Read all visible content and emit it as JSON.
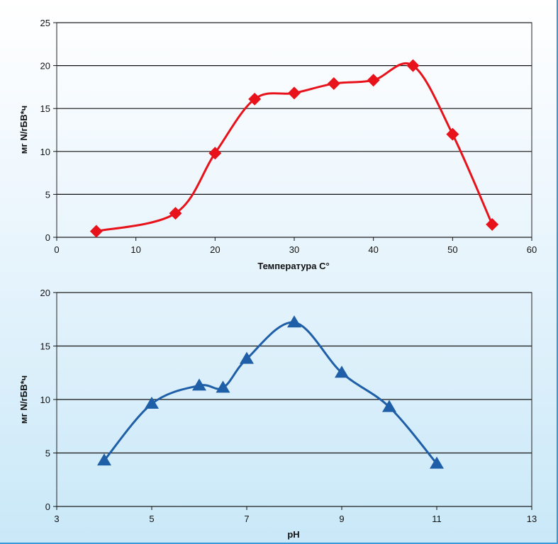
{
  "chart_data": [
    {
      "type": "line",
      "title": "",
      "xlabel": "Температура С°",
      "ylabel": "мг N/гБВ*ч",
      "xlim": [
        0,
        60
      ],
      "ylim": [
        0,
        25
      ],
      "xticks": [
        "0",
        "10",
        "20",
        "30",
        "40",
        "50",
        "60"
      ],
      "yticks": [
        "0",
        "5",
        "10",
        "15",
        "20",
        "25"
      ],
      "grid": "horizontal",
      "marker": "diamond",
      "color": "#e8121b",
      "series": [
        {
          "x": [
            5,
            15,
            20,
            25,
            30,
            35,
            40,
            45,
            50,
            55
          ],
          "y": [
            0.7,
            2.8,
            9.8,
            16.1,
            16.8,
            17.9,
            18.3,
            20.0,
            12.0,
            1.5
          ]
        }
      ]
    },
    {
      "type": "line",
      "title": "",
      "xlabel": "pH",
      "ylabel": "мг N/гБВ*ч",
      "xlim": [
        3,
        13
      ],
      "ylim": [
        0,
        20
      ],
      "xticks": [
        "3",
        "5",
        "7",
        "9",
        "11",
        "13"
      ],
      "yticks": [
        "0",
        "5",
        "10",
        "15",
        "20"
      ],
      "grid": "horizontal",
      "marker": "triangle",
      "color": "#1f5fa8",
      "series": [
        {
          "x": [
            4,
            5,
            6,
            6.5,
            7,
            8,
            9,
            10,
            11
          ],
          "y": [
            4.3,
            9.6,
            11.3,
            11.1,
            13.8,
            17.2,
            12.5,
            9.3,
            4.0
          ]
        }
      ]
    }
  ]
}
